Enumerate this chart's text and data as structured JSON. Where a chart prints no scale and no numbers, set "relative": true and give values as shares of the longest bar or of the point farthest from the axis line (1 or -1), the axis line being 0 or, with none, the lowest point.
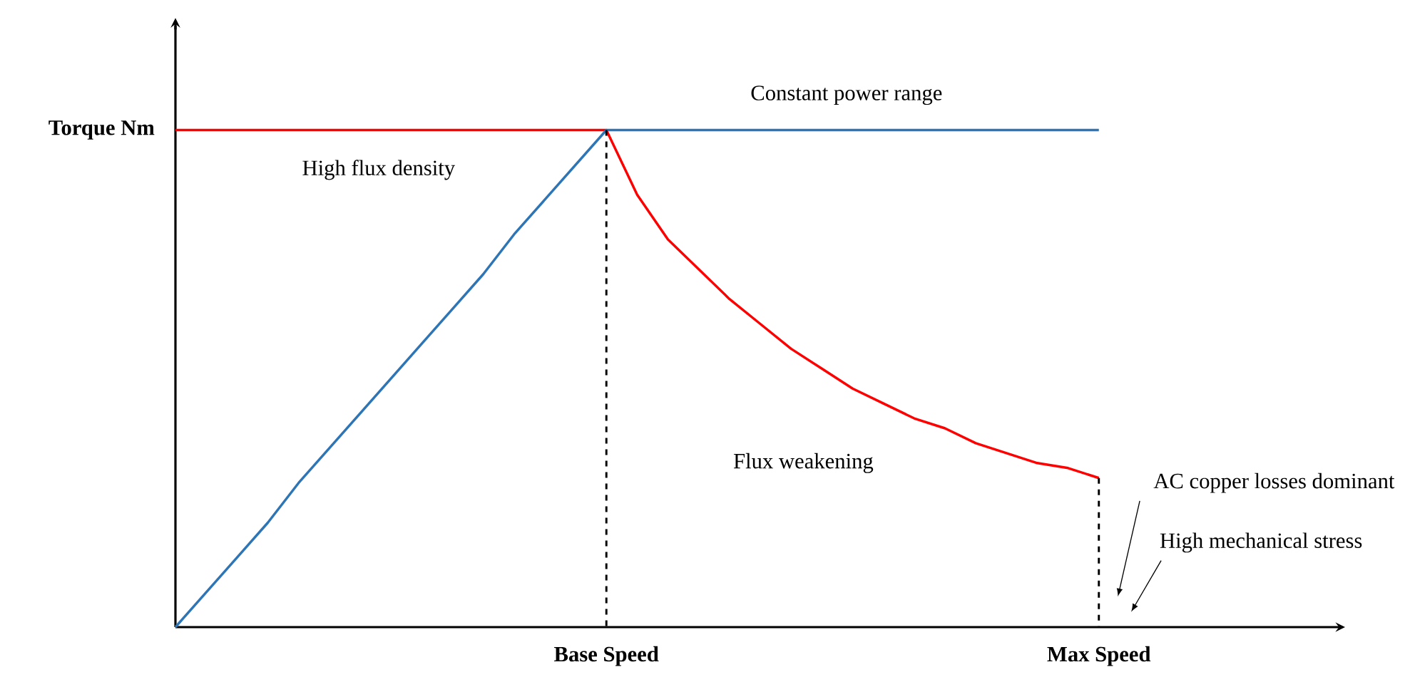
{
  "chart_data": {
    "type": "line",
    "relative": true,
    "marker": "none",
    "categories": [
      null,
      null,
      null,
      null,
      null,
      null,
      null,
      null,
      null,
      null,
      null,
      null,
      null,
      null,
      "Base Speed",
      null,
      null,
      null,
      null,
      null,
      null,
      null,
      null,
      null,
      null,
      null,
      null,
      null,
      null,
      null,
      "Max Speed",
      null,
      null,
      null,
      null,
      null,
      null,
      null,
      null
    ],
    "series": [
      {
        "color": "#ff0000",
        "line_style": "solid",
        "values": [
          1,
          1,
          1,
          1,
          1,
          1,
          1,
          1,
          1,
          1,
          1,
          1,
          1,
          1,
          1,
          0.87,
          0.78,
          0.72,
          0.66,
          0.61,
          0.56,
          0.52,
          0.48,
          0.45,
          0.42,
          0.4,
          0.37,
          0.35,
          0.33,
          0.32,
          0.3,
          null,
          null,
          null,
          null,
          null,
          null,
          null,
          null
        ]
      },
      {
        "color": "#2e75b6",
        "line_style": "solid",
        "values": [
          0,
          0.07,
          0.14,
          0.21,
          0.29,
          0.36,
          0.43,
          0.5,
          0.57,
          0.64,
          0.71,
          0.79,
          0.86,
          0.93,
          1,
          1,
          1,
          1,
          1,
          1,
          1,
          1,
          1,
          1,
          1,
          1,
          1,
          1,
          1,
          1,
          1,
          null,
          null,
          null,
          null,
          null,
          null,
          null,
          null
        ]
      }
    ],
    "annotations": [
      "Torque Nm",
      "Constant power range",
      "High flux density",
      "Flux weakening",
      "AC copper losses dominant",
      "High mechanical stress"
    ]
  }
}
